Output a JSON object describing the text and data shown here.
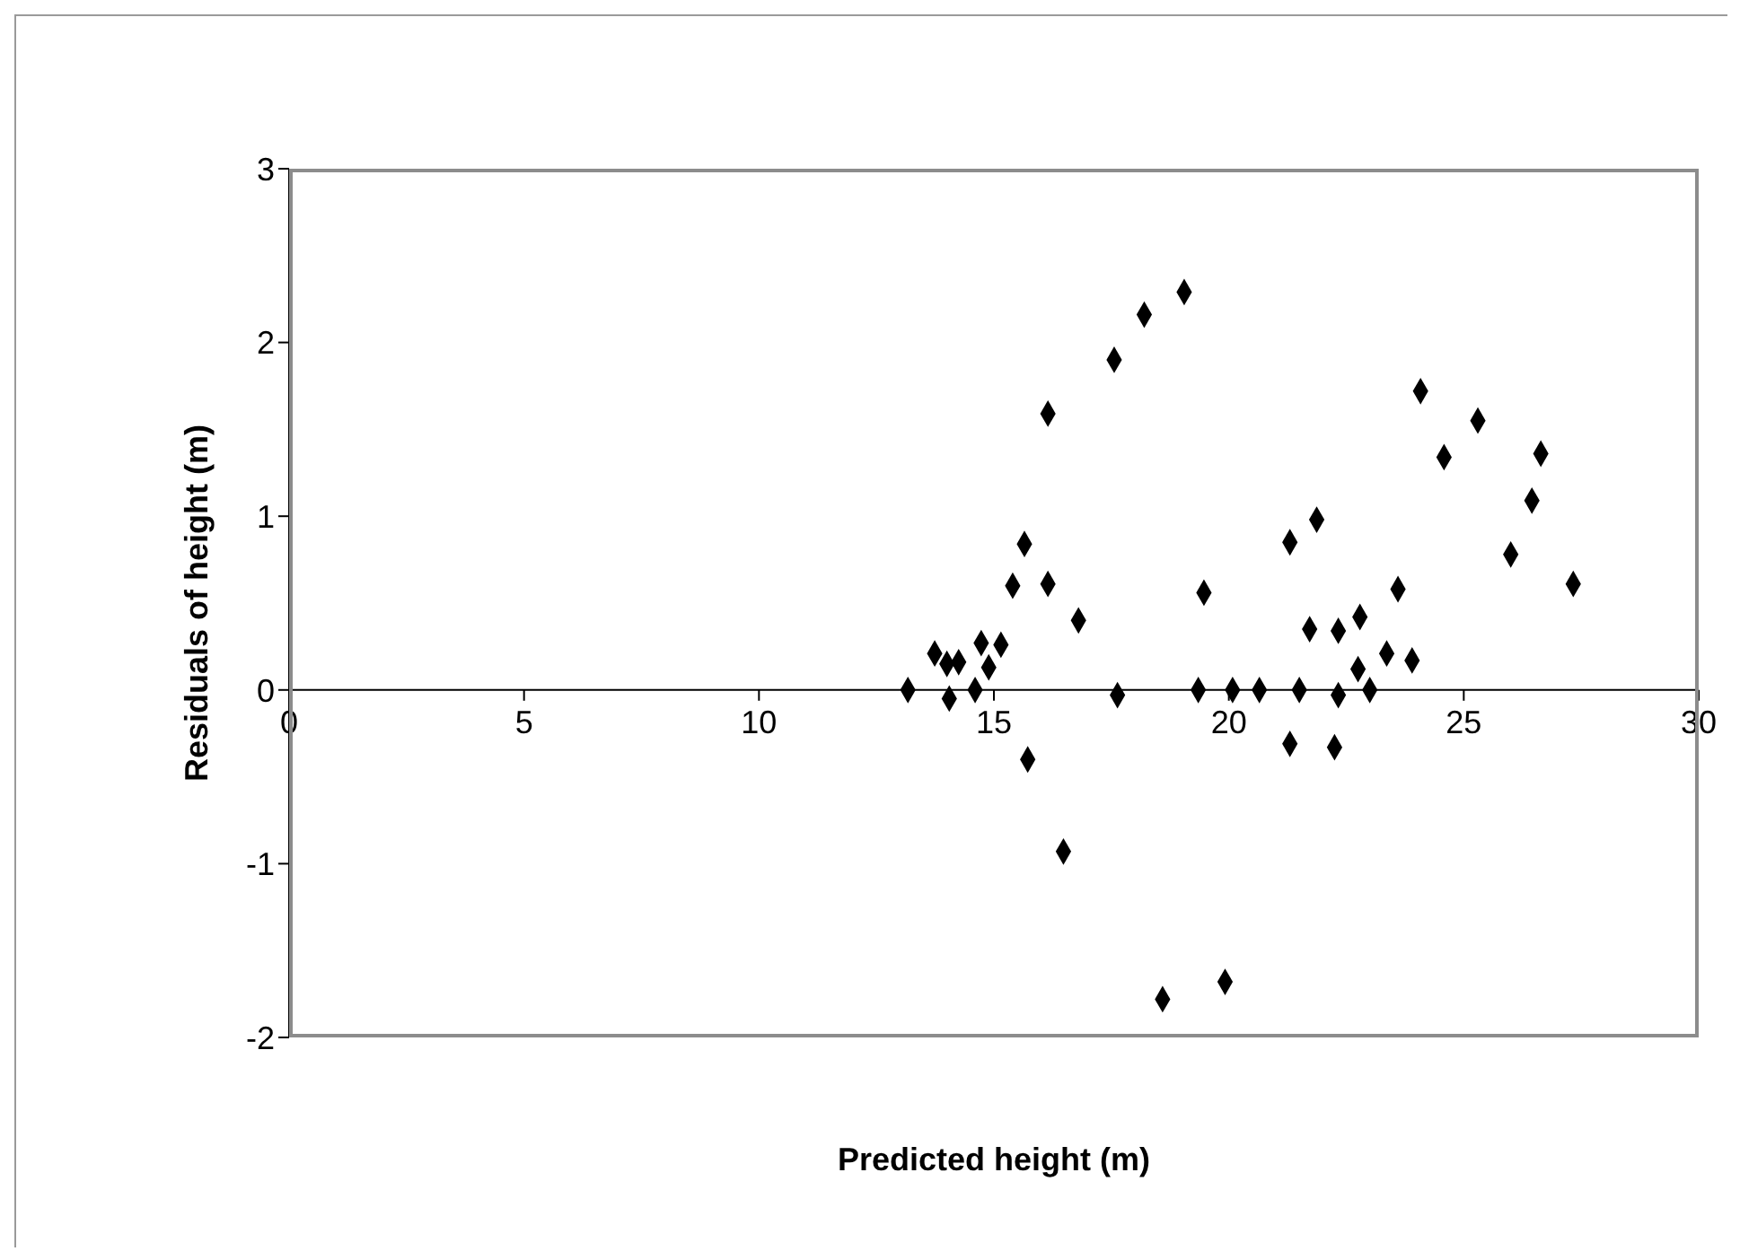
{
  "chart_data": {
    "type": "scatter",
    "xlabel": "Predicted height (m)",
    "ylabel": "Residuals of height (m)",
    "xlim": [
      0,
      30
    ],
    "xticks": [
      0,
      5,
      10,
      15,
      20,
      25,
      30
    ],
    "ylim": [
      -2,
      3
    ],
    "yticks": [
      -2,
      -1,
      0,
      1,
      2,
      3
    ],
    "grid": false,
    "legend": false,
    "marker": "diamond",
    "series": [
      {
        "color": "#000000",
        "x": [
          13.17,
          13.74,
          14.0,
          14.25,
          14.05,
          14.6,
          14.73,
          14.89,
          15.15,
          15.4,
          15.65,
          15.72,
          16.15,
          16.15,
          16.48,
          16.8,
          17.56,
          17.63,
          18.2,
          18.59,
          19.05,
          19.35,
          19.47,
          19.92,
          20.08,
          20.65,
          21.3,
          21.3,
          21.5,
          21.87,
          21.72,
          22.33,
          22.25,
          22.33,
          22.79,
          22.75,
          23.0,
          23.36,
          23.6,
          23.9,
          24.08,
          24.58,
          25.3,
          26.0,
          26.45,
          26.64,
          27.33
        ],
        "values": [
          0,
          0.21,
          0.15,
          0.16,
          -0.05,
          0,
          0.27,
          0.13,
          0.26,
          0.6,
          0.84,
          -0.4,
          1.59,
          0.61,
          -0.93,
          0.4,
          1.9,
          -0.03,
          2.16,
          -1.78,
          2.29,
          0,
          0.56,
          -1.68,
          0,
          0,
          0.85,
          -0.31,
          0,
          0.98,
          0.35,
          -0.03,
          -0.33,
          0.34,
          0.42,
          0.12,
          0,
          0.21,
          0.58,
          0.17,
          1.72,
          1.34,
          1.55,
          0.78,
          1.09,
          1.36,
          0.61
        ]
      }
    ]
  }
}
